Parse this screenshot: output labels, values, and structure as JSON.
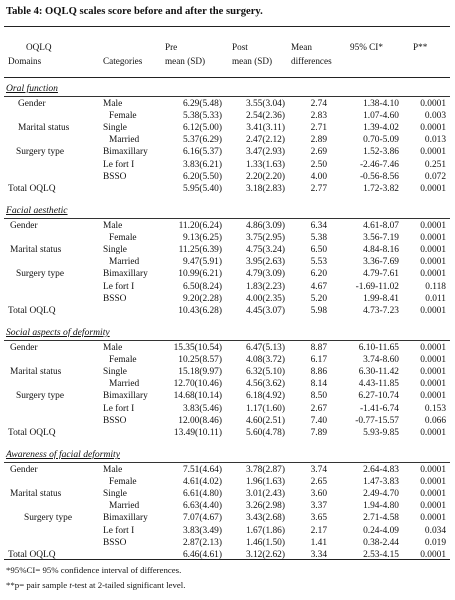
{
  "caption": "Table 4: OQLQ scales score before and after the surgery.",
  "headers": {
    "domain_line1": "OQLQ",
    "domain_line2": "Domains",
    "categories": "Categories",
    "pre_line1": "Pre",
    "pre_line2": "mean (SD)",
    "post_line1": "Post",
    "post_line2": "mean (SD)",
    "diff_line1": "Mean",
    "diff_line2": "differences",
    "ci": "95% CI*",
    "p": "P**"
  },
  "sections": [
    {
      "title": "Oral function",
      "rows": [
        {
          "group": "Gender",
          "category": "Male",
          "pre": "6.29(5.48)",
          "post": "3.55(3.04)",
          "diff": "2.74",
          "ci": "1.38-4.10",
          "p": "0.0001"
        },
        {
          "group": "",
          "category": "Female",
          "pre": "5.38(5.33)",
          "post": "2.54(2.36)",
          "diff": "2.83",
          "ci": "1.07-4.60",
          "p": "0.003"
        },
        {
          "group": "Marital status",
          "category": "Single",
          "pre": "6.12(5.00)",
          "post": "3.41(3.11)",
          "diff": "2.71",
          "ci": "1.39-4.02",
          "p": "0.0001"
        },
        {
          "group": "",
          "category": "Married",
          "pre": "5.37(6.29)",
          "post": "2.47(2.12)",
          "diff": "2.89",
          "ci": "0.70-5.09",
          "p": "0.013"
        },
        {
          "group": "Surgery type",
          "category": "Bimaxillary",
          "pre": "6.16(5.37)",
          "post": "3.47(2.93)",
          "diff": "2.69",
          "ci": "1.52-3.86",
          "p": "0.0001"
        },
        {
          "group": "",
          "category": "Le fort I",
          "pre": "3.83(6.21)",
          "post": "1.33(1.63)",
          "diff": "2.50",
          "ci": "-2.46-7.46",
          "p": "0.251"
        },
        {
          "group": "",
          "category": "BSSO",
          "pre": "6.20(5.50)",
          "post": "2.20(2.20)",
          "diff": "4.00",
          "ci": "-0.56-8.56",
          "p": "0.072"
        }
      ],
      "total": {
        "label": "Total OQLQ",
        "pre": "5.95(5.40)",
        "post": "3.18(2.83)",
        "diff": "2.77",
        "ci": "1.72-3.82",
        "p": "0.0001"
      }
    },
    {
      "title": "Facial aesthetic",
      "rows": [
        {
          "group": "Gender",
          "category": "Male",
          "pre": "11.20(6.24)",
          "post": "4.86(3.09)",
          "diff": "6.34",
          "ci": "4.61-8.07",
          "p": "0.0001"
        },
        {
          "group": "",
          "category": "Female",
          "pre": "9.13(6.25)",
          "post": "3.75(2.95)",
          "diff": "5.38",
          "ci": "3.56-7.19",
          "p": "0.0001"
        },
        {
          "group": "Marital status",
          "category": "Single",
          "pre": "11.25(6.39)",
          "post": "4.75(3.24)",
          "diff": "6.50",
          "ci": "4.84-8.16",
          "p": "0.0001"
        },
        {
          "group": "",
          "category": "Married",
          "pre": "9.47(5.91)",
          "post": "3.95(2.63)",
          "diff": "5.53",
          "ci": "3.36-7.69",
          "p": "0.0001"
        },
        {
          "group": "Surgery type",
          "category": "Bimaxillary",
          "pre": "10.99(6.21)",
          "post": "4.79(3.09)",
          "diff": "6.20",
          "ci": "4.79-7.61",
          "p": "0.0001"
        },
        {
          "group": "",
          "category": "Le fort I",
          "pre": "6.50(8.24)",
          "post": "1.83(2.23)",
          "diff": "4.67",
          "ci": "-1.69-11.02",
          "p": "0.118"
        },
        {
          "group": "",
          "category": "BSSO",
          "pre": "9.20(2.28)",
          "post": "4.00(2.35)",
          "diff": "5.20",
          "ci": "1.99-8.41",
          "p": "0.011"
        }
      ],
      "total": {
        "label": "Total OQLQ",
        "pre": "10.43(6.28)",
        "post": "4.45(3.07)",
        "diff": "5.98",
        "ci": "4.73-7.23",
        "p": "0.0001"
      }
    },
    {
      "title": "Social aspects of deformity",
      "rows": [
        {
          "group": "Gender",
          "category": "Male",
          "pre": "15.35(10.54)",
          "post": "6.47(5.13)",
          "diff": "8.87",
          "ci": "6.10-11.65",
          "p": "0.0001"
        },
        {
          "group": "",
          "category": "Female",
          "pre": "10.25(8.57)",
          "post": "4.08(3.72)",
          "diff": "6.17",
          "ci": "3.74-8.60",
          "p": "0.0001"
        },
        {
          "group": "Marital status",
          "category": "Single",
          "pre": "15.18(9.97)",
          "post": "6.32(5.10)",
          "diff": "8.86",
          "ci": "6.30-11.42",
          "p": "0.0001"
        },
        {
          "group": "",
          "category": "Married",
          "pre": "12.70(10.46)",
          "post": "4.56(3.62)",
          "diff": "8.14",
          "ci": "4.43-11.85",
          "p": "0.0001"
        },
        {
          "group": "Surgery type",
          "category": "Bimaxillary",
          "pre": "14.68(10.14)",
          "post": "6.18(4.92)",
          "diff": "8.50",
          "ci": "6.27-10.74",
          "p": "0.0001"
        },
        {
          "group": "",
          "category": "Le fort I",
          "pre": "3.83(5.46)",
          "post": "1.17(1.60)",
          "diff": "2.67",
          "ci": "-1.41-6.74",
          "p": "0.153"
        },
        {
          "group": "",
          "category": "BSSO",
          "pre": "12.00(8.46)",
          "post": "4.60(2.51)",
          "diff": "7.40",
          "ci": "-0.77-15.57",
          "p": "0.066"
        }
      ],
      "total": {
        "label": "Total OQLQ",
        "pre": "13.49(10.11)",
        "post": "5.60(4.78)",
        "diff": "7.89",
        "ci": "5.93-9.85",
        "p": "0.0001"
      }
    },
    {
      "title": "Awareness of facial deformity",
      "rows": [
        {
          "group": "Gender",
          "category": "Male",
          "pre": "7.51(4.64)",
          "post": "3.78(2.87)",
          "diff": "3.74",
          "ci": "2.64-4.83",
          "p": "0.0001"
        },
        {
          "group": "",
          "category": "Female",
          "pre": "4.61(4.02)",
          "post": "1.96(1.63)",
          "diff": "2.65",
          "ci": "1.47-3.83",
          "p": "0.0001"
        },
        {
          "group": "Marital status",
          "category": "Single",
          "pre": "6.61(4.80)",
          "post": "3.01(2.43)",
          "diff": "3.60",
          "ci": "2.49-4.70",
          "p": "0.0001"
        },
        {
          "group": "",
          "category": "Married",
          "pre": "6.63(4.40)",
          "post": "3.26(2.98)",
          "diff": "3.37",
          "ci": "1.94-4.80",
          "p": "0.0001"
        },
        {
          "group": "Surgery type",
          "category": "Bimaxillary",
          "pre": "7.07(4.67)",
          "post": "3.43(2.68)",
          "diff": "3.65",
          "ci": "2.71-4.58",
          "p": "0.0001"
        },
        {
          "group": "",
          "category": "Le fort I",
          "pre": "3.83(3.49)",
          "post": "1.67(1.86)",
          "diff": "2.17",
          "ci": "0.24-4.09",
          "p": "0.034"
        },
        {
          "group": "",
          "category": "BSSO",
          "pre": "2.87(2.13)",
          "post": "1.46(1.50)",
          "diff": "1.41",
          "ci": "0.38-2.44",
          "p": "0.019"
        }
      ],
      "total": {
        "label": "Total OQLQ",
        "pre": "6.46(4.61)",
        "post": "3.12(2.62)",
        "diff": "3.34",
        "ci": "2.53-4.15",
        "p": "0.0001"
      }
    }
  ],
  "footnotes": [
    "*95%CI= 95% confidence interval of differences.",
    "**p= pair sample t-test at 2-tailed significant level."
  ]
}
